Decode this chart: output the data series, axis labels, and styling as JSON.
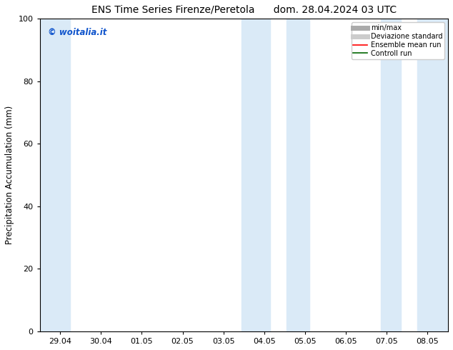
{
  "title_left": "ENS Time Series Firenze/Peretola",
  "title_right": "dom. 28.04.2024 03 UTC",
  "ylabel": "Precipitation Accumulation (mm)",
  "ylim": [
    0,
    100
  ],
  "yticks": [
    0,
    20,
    40,
    60,
    80,
    100
  ],
  "xtick_labels": [
    "29.04",
    "30.04",
    "01.05",
    "02.05",
    "03.05",
    "04.05",
    "05.05",
    "06.05",
    "07.05",
    "08.05"
  ],
  "background_color": "#ffffff",
  "plot_bg_color": "#ffffff",
  "band_color": "#daeaf7",
  "watermark_text": "© woitalia.it",
  "watermark_color": "#1155cc",
  "legend_entries": [
    {
      "label": "min/max",
      "color": "#aaaaaa",
      "lw": 5,
      "style": "solid"
    },
    {
      "label": "Deviazione standard",
      "color": "#cccccc",
      "lw": 5,
      "style": "solid"
    },
    {
      "label": "Ensemble mean run",
      "color": "#ff0000",
      "lw": 1.2,
      "style": "solid"
    },
    {
      "label": "Controll run",
      "color": "#006600",
      "lw": 1.2,
      "style": "solid"
    }
  ],
  "title_fontsize": 10,
  "axis_fontsize": 8.5,
  "tick_fontsize": 8,
  "watermark_fontsize": 8.5
}
